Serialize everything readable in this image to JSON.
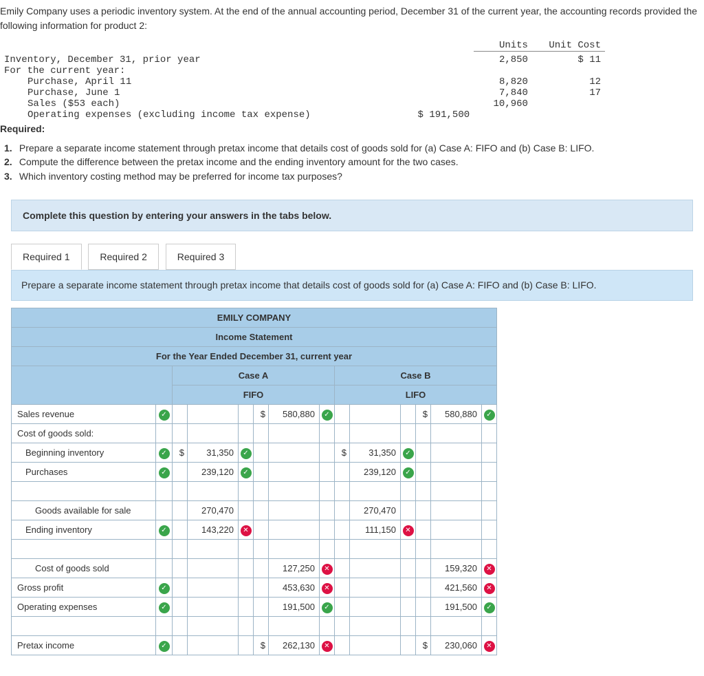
{
  "intro": "Emily Company uses a periodic inventory system. At the end of the annual accounting period, December 31 of the current year, the accounting records provided the following information for product 2:",
  "header": {
    "units": "Units",
    "unit_cost": "Unit Cost"
  },
  "lines": [
    {
      "label": "Inventory, December 31, prior year",
      "units": "2,850",
      "cost": "$ 11",
      "indent": 0
    },
    {
      "label": "For the current year:",
      "units": "",
      "cost": "",
      "indent": 0
    },
    {
      "label": "Purchase, April 11",
      "units": "8,820",
      "cost": "12",
      "indent": 1
    },
    {
      "label": "Purchase, June 1",
      "units": "7,840",
      "cost": "17",
      "indent": 1
    },
    {
      "label": "Sales ($53 each)",
      "units": "10,960",
      "cost": "",
      "indent": 1
    },
    {
      "label": "Operating expenses (excluding income tax expense)",
      "amount": "$ 191,500",
      "indent": 1
    }
  ],
  "required_label": "Required:",
  "requirements": [
    "Prepare a separate income statement through pretax income that details cost of goods sold for (a) Case A: FIFO and (b) Case B: LIFO.",
    "Compute the difference between the pretax income and the ending inventory amount for the two cases.",
    "Which inventory costing method may be preferred for income tax purposes?"
  ],
  "instruction": "Complete this question by entering your answers in the tabs below.",
  "tabs": [
    "Required 1",
    "Required 2",
    "Required 3"
  ],
  "prompt": "Prepare a separate income statement through pretax income that details cost of goods sold for (a) Case A: FIFO and (b) Case B: LIFO.",
  "stmt": {
    "title1": "EMILY COMPANY",
    "title2": "Income Statement",
    "title3": "For the Year Ended December 31, current year",
    "caseA": "Case A",
    "caseB": "Case B",
    "fifo": "FIFO",
    "lifo": "LIFO"
  },
  "rows": {
    "sales_revenue": {
      "label": "Sales revenue",
      "lmark": "ok",
      "a1c": "",
      "a1": "",
      "a1m": "",
      "a2c": "$",
      "a2": "580,880",
      "a2m": "ok",
      "b1c": "",
      "b1": "",
      "b1m": "",
      "b2c": "$",
      "b2": "580,880",
      "b2m": "ok"
    },
    "cogs_hdr": {
      "label": "Cost of goods sold:",
      "lmark": "",
      "a1c": "",
      "a1": "",
      "a1m": "",
      "a2c": "",
      "a2": "",
      "a2m": "",
      "b1c": "",
      "b1": "",
      "b1m": "",
      "b2c": "",
      "b2": "",
      "b2m": ""
    },
    "beg_inv": {
      "label": "Beginning inventory",
      "lmark": "ok",
      "a1c": "$",
      "a1": "31,350",
      "a1m": "ok",
      "a2c": "",
      "a2": "",
      "a2m": "",
      "b1c": "$",
      "b1": "31,350",
      "b1m": "ok",
      "b2c": "",
      "b2": "",
      "b2m": ""
    },
    "purchases": {
      "label": "Purchases",
      "lmark": "ok",
      "a1c": "",
      "a1": "239,120",
      "a1m": "ok",
      "a2c": "",
      "a2": "",
      "a2m": "",
      "b1c": "",
      "b1": "239,120",
      "b1m": "ok",
      "b2c": "",
      "b2": "",
      "b2m": ""
    },
    "blank1": {
      "label": "",
      "lmark": "",
      "a1c": "",
      "a1": "",
      "a1m": "",
      "a2c": "",
      "a2": "",
      "a2m": "",
      "b1c": "",
      "b1": "",
      "b1m": "",
      "b2c": "",
      "b2": "",
      "b2m": ""
    },
    "ga4s": {
      "label": "Goods available for sale",
      "lmark": "",
      "a1c": "",
      "a1": "270,470",
      "a1m": "",
      "a2c": "",
      "a2": "",
      "a2m": "",
      "b1c": "",
      "b1": "270,470",
      "b1m": "",
      "b2c": "",
      "b2": "",
      "b2m": ""
    },
    "end_inv": {
      "label": "Ending inventory",
      "lmark": "ok",
      "a1c": "",
      "a1": "143,220",
      "a1m": "bad",
      "a2c": "",
      "a2": "",
      "a2m": "",
      "b1c": "",
      "b1": "111,150",
      "b1m": "bad",
      "b2c": "",
      "b2": "",
      "b2m": ""
    },
    "blank2": {
      "label": "",
      "lmark": "",
      "a1c": "",
      "a1": "",
      "a1m": "",
      "a2c": "",
      "a2": "",
      "a2m": "",
      "b1c": "",
      "b1": "",
      "b1m": "",
      "b2c": "",
      "b2": "",
      "b2m": ""
    },
    "cogs_total": {
      "label": "Cost of goods sold",
      "lmark": "",
      "a1c": "",
      "a1": "",
      "a1m": "",
      "a2c": "",
      "a2": "127,250",
      "a2m": "bad",
      "b1c": "",
      "b1": "",
      "b1m": "",
      "b2c": "",
      "b2": "159,320",
      "b2m": "bad"
    },
    "gross_profit": {
      "label": "Gross profit",
      "lmark": "ok",
      "a1c": "",
      "a1": "",
      "a1m": "",
      "a2c": "",
      "a2": "453,630",
      "a2m": "bad",
      "b1c": "",
      "b1": "",
      "b1m": "",
      "b2c": "",
      "b2": "421,560",
      "b2m": "bad"
    },
    "opex": {
      "label": "Operating expenses",
      "lmark": "ok",
      "a1c": "",
      "a1": "",
      "a1m": "",
      "a2c": "",
      "a2": "191,500",
      "a2m": "ok",
      "b1c": "",
      "b1": "",
      "b1m": "",
      "b2c": "",
      "b2": "191,500",
      "b2m": "ok"
    },
    "blank3": {
      "label": "",
      "lmark": "",
      "a1c": "",
      "a1": "",
      "a1m": "",
      "a2c": "",
      "a2": "",
      "a2m": "",
      "b1c": "",
      "b1": "",
      "b1m": "",
      "b2c": "",
      "b2": "",
      "b2m": ""
    },
    "pretax": {
      "label": "Pretax income",
      "lmark": "ok",
      "a1c": "",
      "a1": "",
      "a1m": "",
      "a2c": "$",
      "a2": "262,130",
      "a2m": "bad",
      "b1c": "",
      "b1": "",
      "b1m": "",
      "b2c": "$",
      "b2": "230,060",
      "b2m": "bad"
    }
  },
  "row_order": [
    "sales_revenue",
    "cogs_hdr",
    "beg_inv",
    "purchases",
    "blank1",
    "ga4s",
    "end_inv",
    "blank2",
    "cogs_total",
    "gross_profit",
    "opex",
    "blank3",
    "pretax"
  ],
  "indent": {
    "beg_inv": 1,
    "purchases": 1,
    "ga4s": 2,
    "end_inv": 1,
    "cogs_total": 2
  },
  "colors": {
    "header_bg": "#a8cde8",
    "border": "#9cb4c6",
    "instruction_bg": "#d9e8f5",
    "prompt_bg": "#cfe6f7",
    "ok": "#3aa54b",
    "bad": "#d14"
  }
}
